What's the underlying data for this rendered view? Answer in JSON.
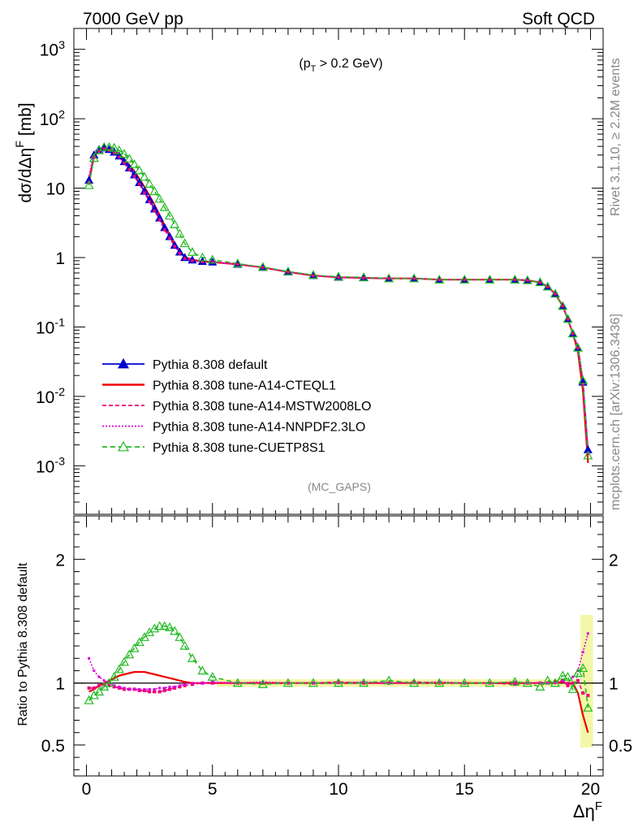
{
  "header": {
    "left": "7000 GeV pp",
    "right": "Soft QCD"
  },
  "side": {
    "rivet": "Rivet 3.1.10, ≥ 2.2M events",
    "mcplots": "mcplots.cern.ch [arXiv:1306.3436]"
  },
  "annotation": {
    "cut": "(p_T > 0.2 GeV)",
    "analysis": "(MC_GAPS)"
  },
  "chart_data": [
    {
      "type": "line",
      "panel": "main",
      "ylabel": "dσ/dΔη^F [mb]",
      "yscale": "log",
      "ylim": [
        0.0002,
        2000
      ],
      "xlim": [
        -0.5,
        20.5
      ],
      "y_tick_labels": [
        "10^3",
        "10^2",
        "10",
        "1",
        "10^-1",
        "10^-2",
        "10^-3"
      ],
      "x": [
        0.1,
        0.3,
        0.5,
        0.7,
        0.9,
        1.1,
        1.3,
        1.5,
        1.7,
        1.9,
        2.1,
        2.3,
        2.5,
        2.7,
        2.9,
        3.1,
        3.3,
        3.5,
        3.7,
        3.9,
        4.2,
        4.6,
        5.0,
        6.0,
        7.0,
        8.0,
        9.0,
        10.0,
        11.0,
        12.0,
        13.0,
        14.0,
        15.0,
        16.0,
        17.0,
        17.5,
        18.0,
        18.3,
        18.6,
        18.9,
        19.1,
        19.3,
        19.5,
        19.7,
        19.9
      ],
      "series": [
        {
          "name": "Pythia 8.308 default",
          "color": "#0000cc",
          "marker": "triangle-filled",
          "values": [
            13,
            30,
            36,
            38,
            36,
            33,
            29,
            24,
            19.5,
            15.5,
            12,
            9,
            6.8,
            5,
            3.7,
            2.7,
            2.0,
            1.5,
            1.2,
            1.0,
            0.92,
            0.88,
            0.86,
            0.8,
            0.72,
            0.62,
            0.55,
            0.52,
            0.51,
            0.5,
            0.5,
            0.48,
            0.48,
            0.48,
            0.48,
            0.47,
            0.44,
            0.38,
            0.3,
            0.2,
            0.13,
            0.08,
            0.05,
            0.016,
            0.0017
          ]
        },
        {
          "name": "Pythia 8.308 tune-A14-CTEQL1",
          "color": "#ee0000",
          "marker": "none",
          "values": [
            12,
            29,
            35,
            38,
            37,
            34,
            31,
            26,
            21.5,
            17.5,
            13.6,
            10.4,
            7.8,
            5.7,
            4.1,
            2.9,
            2.1,
            1.6,
            1.25,
            1.02,
            0.93,
            0.88,
            0.86,
            0.8,
            0.72,
            0.62,
            0.55,
            0.52,
            0.51,
            0.5,
            0.5,
            0.48,
            0.48,
            0.48,
            0.48,
            0.47,
            0.44,
            0.38,
            0.3,
            0.2,
            0.13,
            0.08,
            0.045,
            0.012,
            0.0011
          ]
        },
        {
          "name": "Pythia 8.308 tune-A14-MSTW2008LO",
          "color": "#ee0077",
          "marker": "square-small",
          "values": [
            12,
            28,
            34,
            37,
            35,
            32,
            28,
            23,
            18.5,
            14.8,
            11.4,
            8.6,
            6.4,
            4.7,
            3.5,
            2.5,
            1.9,
            1.45,
            1.15,
            0.97,
            0.9,
            0.87,
            0.86,
            0.8,
            0.72,
            0.62,
            0.55,
            0.52,
            0.51,
            0.5,
            0.5,
            0.48,
            0.48,
            0.48,
            0.48,
            0.47,
            0.44,
            0.38,
            0.3,
            0.2,
            0.13,
            0.08,
            0.05,
            0.015,
            0.0015
          ]
        },
        {
          "name": "Pythia 8.308 tune-A14-NNPDF2.3LO",
          "color": "#dd00dd",
          "marker": "none",
          "values": [
            15,
            33,
            38,
            39,
            36,
            32,
            28,
            23,
            18.3,
            14.6,
            11.3,
            8.5,
            6.4,
            4.7,
            3.5,
            2.6,
            1.95,
            1.5,
            1.2,
            1.0,
            0.92,
            0.88,
            0.86,
            0.8,
            0.72,
            0.62,
            0.55,
            0.52,
            0.51,
            0.5,
            0.5,
            0.48,
            0.48,
            0.48,
            0.48,
            0.47,
            0.44,
            0.38,
            0.3,
            0.2,
            0.13,
            0.08,
            0.055,
            0.018,
            0.0019
          ]
        },
        {
          "name": "Pythia 8.308 tune-CUETP8S1",
          "color": "#22bb22",
          "marker": "triangle-open",
          "values": [
            11,
            27,
            35,
            39,
            39,
            38,
            35,
            31,
            26.5,
            22,
            18,
            14.5,
            11.5,
            9,
            7,
            5.3,
            4.0,
            3.0,
            2.2,
            1.6,
            1.2,
            1.0,
            0.93,
            0.82,
            0.73,
            0.63,
            0.56,
            0.53,
            0.52,
            0.5,
            0.5,
            0.48,
            0.48,
            0.48,
            0.48,
            0.47,
            0.44,
            0.38,
            0.3,
            0.2,
            0.13,
            0.08,
            0.05,
            0.017,
            0.0014
          ]
        }
      ]
    },
    {
      "type": "line",
      "panel": "ratio",
      "ylabel": "Ratio to Pythia 8.308 default",
      "xlabel": "Δη^F",
      "ylim": [
        0.25,
        2.35
      ],
      "xlim": [
        -0.5,
        20.5
      ],
      "y_ticks": [
        0.5,
        1,
        2
      ],
      "x_ticks": [
        0,
        5,
        10,
        15,
        20
      ],
      "x": [
        0.1,
        0.3,
        0.5,
        0.7,
        0.9,
        1.1,
        1.3,
        1.5,
        1.7,
        1.9,
        2.1,
        2.3,
        2.5,
        2.7,
        2.9,
        3.1,
        3.3,
        3.5,
        3.7,
        3.9,
        4.2,
        4.6,
        5.0,
        6.0,
        7.0,
        8.0,
        9.0,
        10.0,
        11.0,
        12.0,
        13.0,
        14.0,
        15.0,
        16.0,
        17.0,
        17.5,
        18.0,
        18.3,
        18.6,
        18.9,
        19.1,
        19.3,
        19.5,
        19.7,
        19.9
      ],
      "series": [
        {
          "name": "Pythia 8.308 tune-A14-CTEQL1",
          "color": "#ee0000",
          "values": [
            0.93,
            0.95,
            0.98,
            1.0,
            1.02,
            1.04,
            1.06,
            1.07,
            1.08,
            1.09,
            1.09,
            1.09,
            1.08,
            1.07,
            1.06,
            1.05,
            1.04,
            1.03,
            1.02,
            1.01,
            1.0,
            1.0,
            1.0,
            1.0,
            1.0,
            1.0,
            1.0,
            1.0,
            1.0,
            1.0,
            1.0,
            1.0,
            1.0,
            1.0,
            1.0,
            1.0,
            1.0,
            1.0,
            1.0,
            1.01,
            0.99,
            1.0,
            0.92,
            0.74,
            0.6
          ]
        },
        {
          "name": "Pythia 8.308 tune-A14-MSTW2008LO",
          "color": "#ee0077",
          "values": [
            0.96,
            0.96,
            0.98,
            0.99,
            0.98,
            0.97,
            0.96,
            0.95,
            0.95,
            0.95,
            0.94,
            0.94,
            0.93,
            0.93,
            0.93,
            0.94,
            0.95,
            0.96,
            0.97,
            0.98,
            0.99,
            1.0,
            1.0,
            1.0,
            1.0,
            1.0,
            1.0,
            1.01,
            1.0,
            1.0,
            1.01,
            1.0,
            1.0,
            1.0,
            0.99,
            1.0,
            1.0,
            1.0,
            1.01,
            1.02,
            0.98,
            1.0,
            1.02,
            0.92,
            0.9
          ]
        },
        {
          "name": "Pythia 8.308 tune-A14-NNPDF2.3LO",
          "color": "#dd00dd",
          "values": [
            1.2,
            1.1,
            1.05,
            1.02,
            1.0,
            0.98,
            0.97,
            0.96,
            0.95,
            0.95,
            0.95,
            0.95,
            0.95,
            0.95,
            0.96,
            0.96,
            0.97,
            0.97,
            0.98,
            0.99,
            1.0,
            1.0,
            1.01,
            1.0,
            1.01,
            1.0,
            1.0,
            1.0,
            1.01,
            1.0,
            1.0,
            1.01,
            1.0,
            1.0,
            1.01,
            1.0,
            1.0,
            1.0,
            1.0,
            1.02,
            1.0,
            1.05,
            1.1,
            1.25,
            1.4
          ]
        },
        {
          "name": "Pythia 8.308 tune-CUETP8S1",
          "color": "#22bb22",
          "values": [
            0.86,
            0.9,
            0.93,
            0.97,
            1.0,
            1.05,
            1.11,
            1.17,
            1.23,
            1.28,
            1.33,
            1.37,
            1.41,
            1.44,
            1.46,
            1.46,
            1.45,
            1.42,
            1.37,
            1.3,
            1.2,
            1.1,
            1.05,
            1.0,
            0.99,
            1.0,
            1.0,
            1.0,
            1.0,
            1.02,
            1.0,
            1.0,
            1.0,
            1.0,
            1.01,
            1.0,
            0.97,
            1.02,
            1.0,
            1.06,
            1.05,
            0.95,
            1.08,
            1.12,
            0.8
          ]
        }
      ],
      "reference_line": 1
    }
  ]
}
